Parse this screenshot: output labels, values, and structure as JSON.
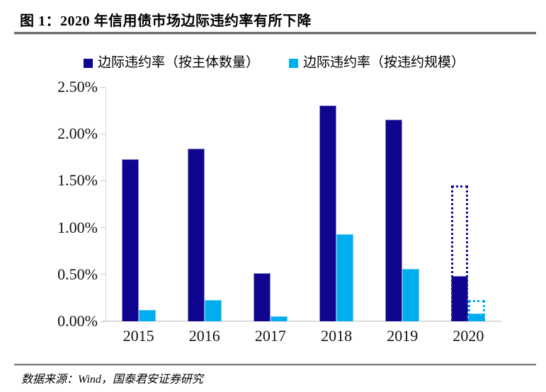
{
  "header": {
    "title": "图 1：2020 年信用债市场边际违约率有所下降"
  },
  "footer": {
    "source": "数据来源：Wind，国泰君安证券研究"
  },
  "colors": {
    "navy": "#0F058F",
    "cyan": "#00AEEF",
    "axis": "#D9D9D9",
    "rule_gray": "#6E6E6E",
    "text": "#000000"
  },
  "chart_data": {
    "type": "bar",
    "title": "2020 年信用债市场边际违约率有所下降",
    "categories": [
      "2015",
      "2016",
      "2017",
      "2018",
      "2019",
      "2020"
    ],
    "series": [
      {
        "name": "边际违约率（按主体数量）",
        "color": "#0F058F",
        "values": [
          1.73,
          1.84,
          0.51,
          2.3,
          2.15,
          0.48
        ]
      },
      {
        "name": "边际违约率（按违约规模）",
        "color": "#00AEEF",
        "values": [
          0.12,
          0.23,
          0.05,
          0.93,
          0.56,
          0.08
        ]
      }
    ],
    "overlays": [
      {
        "category": "2020",
        "series": "边际违约率（按主体数量）",
        "value": 1.45,
        "style": "dotted-outline",
        "color": "#1511A0"
      },
      {
        "category": "2020",
        "series": "边际违约率（按违约规模）",
        "value": 0.23,
        "style": "dotted-outline",
        "color": "#00AEEF"
      }
    ],
    "ylim": [
      0,
      2.5
    ],
    "ytick_step": 0.5,
    "ytick_labels": [
      "0.00%",
      "0.50%",
      "1.00%",
      "1.50%",
      "2.00%",
      "2.50%"
    ],
    "xlabel": "",
    "ylabel": "",
    "grid": false,
    "legend_position": "top"
  }
}
